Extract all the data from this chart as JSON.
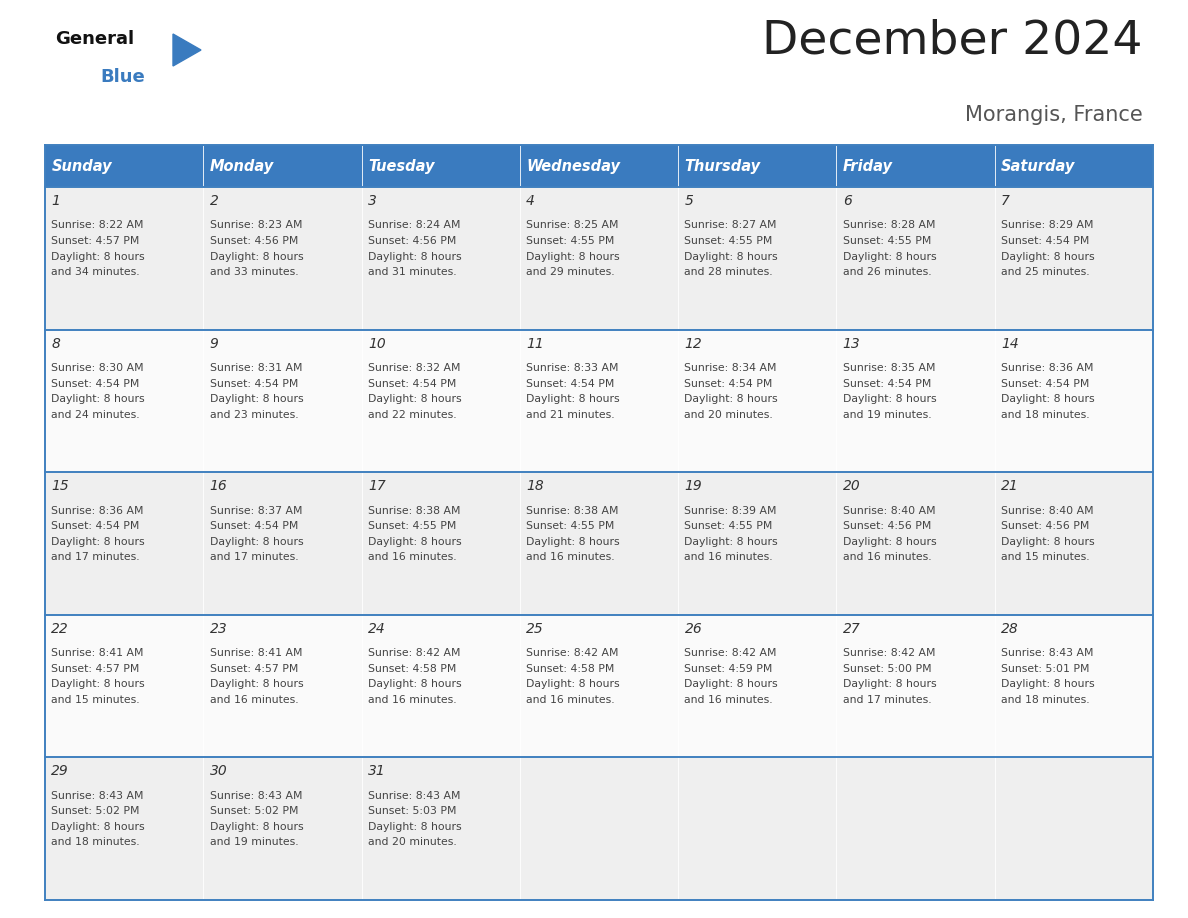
{
  "title": "December 2024",
  "subtitle": "Morangis, France",
  "header_color": "#3A7BBF",
  "header_text_color": "#FFFFFF",
  "days_of_week": [
    "Sunday",
    "Monday",
    "Tuesday",
    "Wednesday",
    "Thursday",
    "Friday",
    "Saturday"
  ],
  "row_bg_even": "#EFEFEF",
  "row_bg_odd": "#FAFAFA",
  "separator_color": "#4080BF",
  "border_color": "#4080BF",
  "text_color": "#333333",
  "title_color": "#222222",
  "subtitle_color": "#555555",
  "calendar_data": [
    [
      {
        "day": 1,
        "sunrise": "8:22 AM",
        "sunset": "4:57 PM",
        "daylight": "8 hours and 34 minutes"
      },
      {
        "day": 2,
        "sunrise": "8:23 AM",
        "sunset": "4:56 PM",
        "daylight": "8 hours and 33 minutes"
      },
      {
        "day": 3,
        "sunrise": "8:24 AM",
        "sunset": "4:56 PM",
        "daylight": "8 hours and 31 minutes"
      },
      {
        "day": 4,
        "sunrise": "8:25 AM",
        "sunset": "4:55 PM",
        "daylight": "8 hours and 29 minutes"
      },
      {
        "day": 5,
        "sunrise": "8:27 AM",
        "sunset": "4:55 PM",
        "daylight": "8 hours and 28 minutes"
      },
      {
        "day": 6,
        "sunrise": "8:28 AM",
        "sunset": "4:55 PM",
        "daylight": "8 hours and 26 minutes"
      },
      {
        "day": 7,
        "sunrise": "8:29 AM",
        "sunset": "4:54 PM",
        "daylight": "8 hours and 25 minutes"
      }
    ],
    [
      {
        "day": 8,
        "sunrise": "8:30 AM",
        "sunset": "4:54 PM",
        "daylight": "8 hours and 24 minutes"
      },
      {
        "day": 9,
        "sunrise": "8:31 AM",
        "sunset": "4:54 PM",
        "daylight": "8 hours and 23 minutes"
      },
      {
        "day": 10,
        "sunrise": "8:32 AM",
        "sunset": "4:54 PM",
        "daylight": "8 hours and 22 minutes"
      },
      {
        "day": 11,
        "sunrise": "8:33 AM",
        "sunset": "4:54 PM",
        "daylight": "8 hours and 21 minutes"
      },
      {
        "day": 12,
        "sunrise": "8:34 AM",
        "sunset": "4:54 PM",
        "daylight": "8 hours and 20 minutes"
      },
      {
        "day": 13,
        "sunrise": "8:35 AM",
        "sunset": "4:54 PM",
        "daylight": "8 hours and 19 minutes"
      },
      {
        "day": 14,
        "sunrise": "8:36 AM",
        "sunset": "4:54 PM",
        "daylight": "8 hours and 18 minutes"
      }
    ],
    [
      {
        "day": 15,
        "sunrise": "8:36 AM",
        "sunset": "4:54 PM",
        "daylight": "8 hours and 17 minutes"
      },
      {
        "day": 16,
        "sunrise": "8:37 AM",
        "sunset": "4:54 PM",
        "daylight": "8 hours and 17 minutes"
      },
      {
        "day": 17,
        "sunrise": "8:38 AM",
        "sunset": "4:55 PM",
        "daylight": "8 hours and 16 minutes"
      },
      {
        "day": 18,
        "sunrise": "8:38 AM",
        "sunset": "4:55 PM",
        "daylight": "8 hours and 16 minutes"
      },
      {
        "day": 19,
        "sunrise": "8:39 AM",
        "sunset": "4:55 PM",
        "daylight": "8 hours and 16 minutes"
      },
      {
        "day": 20,
        "sunrise": "8:40 AM",
        "sunset": "4:56 PM",
        "daylight": "8 hours and 16 minutes"
      },
      {
        "day": 21,
        "sunrise": "8:40 AM",
        "sunset": "4:56 PM",
        "daylight": "8 hours and 15 minutes"
      }
    ],
    [
      {
        "day": 22,
        "sunrise": "8:41 AM",
        "sunset": "4:57 PM",
        "daylight": "8 hours and 15 minutes"
      },
      {
        "day": 23,
        "sunrise": "8:41 AM",
        "sunset": "4:57 PM",
        "daylight": "8 hours and 16 minutes"
      },
      {
        "day": 24,
        "sunrise": "8:42 AM",
        "sunset": "4:58 PM",
        "daylight": "8 hours and 16 minutes"
      },
      {
        "day": 25,
        "sunrise": "8:42 AM",
        "sunset": "4:58 PM",
        "daylight": "8 hours and 16 minutes"
      },
      {
        "day": 26,
        "sunrise": "8:42 AM",
        "sunset": "4:59 PM",
        "daylight": "8 hours and 16 minutes"
      },
      {
        "day": 27,
        "sunrise": "8:42 AM",
        "sunset": "5:00 PM",
        "daylight": "8 hours and 17 minutes"
      },
      {
        "day": 28,
        "sunrise": "8:43 AM",
        "sunset": "5:01 PM",
        "daylight": "8 hours and 18 minutes"
      }
    ],
    [
      {
        "day": 29,
        "sunrise": "8:43 AM",
        "sunset": "5:02 PM",
        "daylight": "8 hours and 18 minutes"
      },
      {
        "day": 30,
        "sunrise": "8:43 AM",
        "sunset": "5:02 PM",
        "daylight": "8 hours and 19 minutes"
      },
      {
        "day": 31,
        "sunrise": "8:43 AM",
        "sunset": "5:03 PM",
        "daylight": "8 hours and 20 minutes"
      },
      null,
      null,
      null,
      null
    ]
  ]
}
